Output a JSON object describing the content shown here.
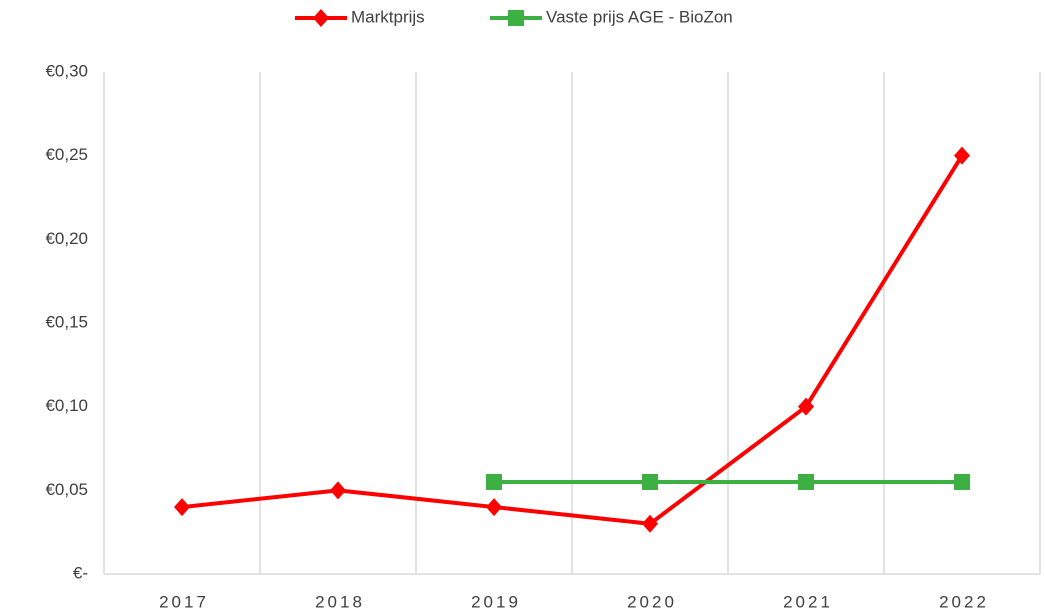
{
  "chart_data": {
    "type": "line",
    "categories": [
      "2017",
      "2018",
      "2019",
      "2020",
      "2021",
      "2022"
    ],
    "series": [
      {
        "name": "Marktprijs",
        "color": "#ff0000",
        "marker": "diamond",
        "values": [
          0.04,
          0.05,
          0.04,
          0.03,
          0.1,
          0.25
        ]
      },
      {
        "name": "Vaste prijs AGE - BioZon",
        "color": "#3cb043",
        "marker": "square",
        "values": [
          null,
          null,
          0.055,
          0.055,
          0.055,
          0.055
        ]
      }
    ],
    "ylim": [
      0,
      0.3
    ],
    "yticks": [
      {
        "value": 0,
        "label": "€-"
      },
      {
        "value": 0.05,
        "label": "€0,05"
      },
      {
        "value": 0.1,
        "label": "€0,10"
      },
      {
        "value": 0.15,
        "label": "€0,15"
      },
      {
        "value": 0.2,
        "label": "€0,20"
      },
      {
        "value": 0.25,
        "label": "€0,25"
      },
      {
        "value": 0.3,
        "label": "€0,30"
      }
    ],
    "legend": "top"
  }
}
